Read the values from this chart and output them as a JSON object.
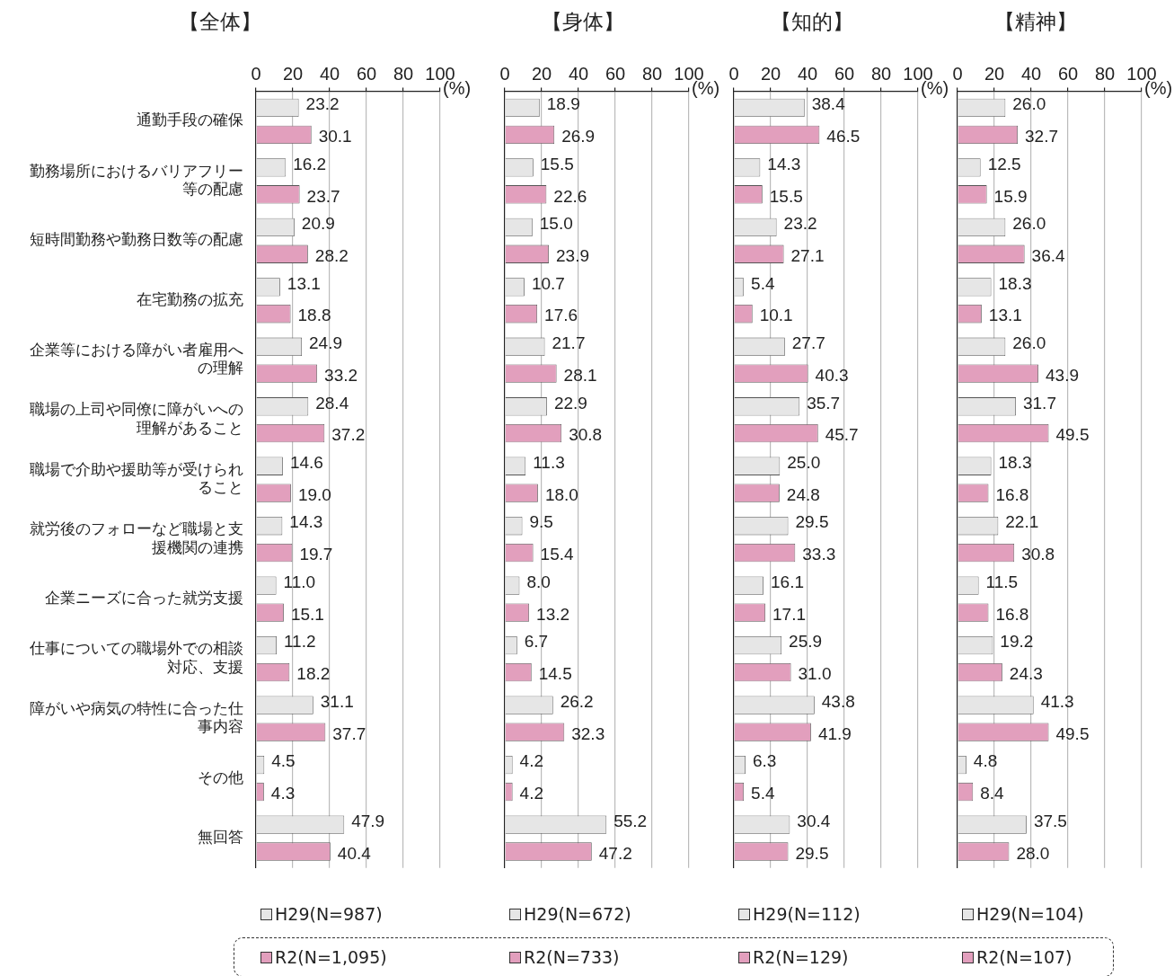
{
  "chart_data": [
    {
      "type": "bar",
      "orientation": "horizontal",
      "title": "【全体】",
      "xlabel": "(%)",
      "categories": [
        "通勤手段の確保",
        "勤務場所におけるバリアフリー等の配慮",
        "短時間勤務や勤務日数等の配慮",
        "在宅勤務の拡充",
        "企業等における障がい者雇用への理解",
        "職場の上司や同僚に障がいへの理解があること",
        "職場で介助や援助等が受けられること",
        "就労後のフォローなど職場と支援機関の連携",
        "企業ニーズに合った就労支援",
        "仕事についての職場外での相談対応、支援",
        "障がいや病気の特性に合った仕事内容",
        "その他",
        "無回答"
      ],
      "xlim": [
        0,
        100
      ],
      "xticks": [
        0,
        20,
        40,
        60,
        80,
        100
      ],
      "grid": "x",
      "legend": "bottom",
      "series": [
        {
          "name": "H29(N=987)",
          "color": "#e6e6e6",
          "values": [
            23.2,
            16.2,
            20.9,
            13.1,
            24.9,
            28.4,
            14.6,
            14.3,
            11.0,
            11.2,
            31.1,
            4.5,
            47.9
          ],
          "value_labels": [
            "23.2",
            "16.2",
            "20.9",
            "13.1",
            "24.9",
            "28.4",
            "14.6",
            "14.3",
            "11.0",
            "11.2",
            "31.1",
            "4.5",
            "47.9"
          ]
        },
        {
          "name": "R2(N=1,095)",
          "color": "#e29fbd",
          "values": [
            30.1,
            23.7,
            28.2,
            18.8,
            33.2,
            37.2,
            19.0,
            19.7,
            15.1,
            18.2,
            37.7,
            4.3,
            40.4
          ],
          "value_labels": [
            "30.1",
            "23.7",
            "28.2",
            "18.8",
            "33.2",
            "37.2",
            "19.0",
            "19.7",
            "15.1",
            "18.2",
            "37.7",
            "4.3",
            "40.4"
          ]
        }
      ]
    },
    {
      "type": "bar",
      "orientation": "horizontal",
      "title": "【身体】",
      "xlabel": "(%)",
      "categories": [
        "通勤手段の確保",
        "勤務場所におけるバリアフリー等の配慮",
        "短時間勤務や勤務日数等の配慮",
        "在宅勤務の拡充",
        "企業等における障がい者雇用への理解",
        "職場の上司や同僚に障がいへの理解があること",
        "職場で介助や援助等が受けられること",
        "就労後のフォローなど職場と支援機関の連携",
        "企業ニーズに合った就労支援",
        "仕事についての職場外での相談対応、支援",
        "障がいや病気の特性に合った仕事内容",
        "その他",
        "無回答"
      ],
      "xlim": [
        0,
        100
      ],
      "xticks": [
        0,
        20,
        40,
        60,
        80,
        100
      ],
      "grid": "x",
      "legend": "bottom",
      "tick_labels": "x",
      "series": [
        {
          "name": "H29(N=672)",
          "color": "#e6e6e6",
          "values": [
            18.9,
            15.5,
            15.0,
            10.7,
            21.7,
            22.9,
            11.3,
            9.5,
            8.0,
            6.7,
            26.2,
            4.2,
            55.2
          ],
          "value_labels": [
            "18.9",
            "15.5",
            "15.0",
            "10.7",
            "21.7",
            "22.9",
            "11.3",
            "9.5",
            "8.0",
            "6.7",
            "26.2",
            "4.2",
            "55.2"
          ]
        },
        {
          "name": "R2(N=733)",
          "color": "#e29fbd",
          "values": [
            26.9,
            22.6,
            23.9,
            17.6,
            28.1,
            30.8,
            18.0,
            15.4,
            13.2,
            14.5,
            32.3,
            4.2,
            47.2
          ],
          "value_labels": [
            "26.9",
            "22.6",
            "23.9",
            "17.6",
            "28.1",
            "30.8",
            "18.0",
            "15.4",
            "13.2",
            "14.5",
            "32.3",
            "4.2",
            "47.2"
          ]
        }
      ]
    },
    {
      "type": "bar",
      "orientation": "horizontal",
      "title": "【知的】",
      "xlabel": "(%)",
      "categories": [
        "通勤手段の確保",
        "勤務場所におけるバリアフリー等の配慮",
        "短時間勤務や勤務日数等の配慮",
        "在宅勤務の拡充",
        "企業等における障がい者雇用への理解",
        "職場の上司や同僚に障がいへの理解があること",
        "職場で介助や援助等が受けられること",
        "就労後のフォローなど職場と支援機関の連携",
        "企業ニーズに合った就労支援",
        "仕事についての職場外での相談対応、支援",
        "障がいや病気の特性に合った仕事内容",
        "その他",
        "無回答"
      ],
      "xlim": [
        0,
        100
      ],
      "xticks": [
        0,
        20,
        40,
        60,
        80,
        100
      ],
      "grid": "x",
      "legend": "bottom",
      "tick_labels": "x",
      "series": [
        {
          "name": "H29(N=112)",
          "color": "#e6e6e6",
          "values": [
            38.4,
            14.3,
            23.2,
            5.4,
            27.7,
            35.7,
            25.0,
            29.5,
            16.1,
            25.9,
            43.8,
            6.3,
            30.4
          ],
          "value_labels": [
            "38.4",
            "14.3",
            "23.2",
            "5.4",
            "27.7",
            "35.7",
            "25.0",
            "29.5",
            "16.1",
            "25.9",
            "43.8",
            "6.3",
            "30.4"
          ]
        },
        {
          "name": "R2(N=129)",
          "color": "#e29fbd",
          "values": [
            46.5,
            15.5,
            27.1,
            10.1,
            40.3,
            45.7,
            24.8,
            33.3,
            17.1,
            31.0,
            41.9,
            5.4,
            29.5
          ],
          "value_labels": [
            "46.5",
            "15.5",
            "27.1",
            "10.1",
            "40.3",
            "45.7",
            "24.8",
            "33.3",
            "17.1",
            "31.0",
            "41.9",
            "5.4",
            "29.5"
          ]
        }
      ]
    },
    {
      "type": "bar",
      "orientation": "horizontal",
      "title": "【精神】",
      "xlabel": "(%)",
      "categories": [
        "通勤手段の確保",
        "勤務場所におけるバリアフリー等の配慮",
        "短時間勤務や勤務日数等の配慮",
        "在宅勤務の拡充",
        "企業等における障がい者雇用への理解",
        "職場の上司や同僚に障がいへの理解があること",
        "職場で介助や援助等が受けられること",
        "就労後のフォローなど職場と支援機関の連携",
        "企業ニーズに合った就労支援",
        "仕事についての職場外での相談対応、支援",
        "障がいや病気の特性に合った仕事内容",
        "その他",
        "無回答"
      ],
      "xlim": [
        0,
        100
      ],
      "xticks": [
        0,
        20,
        40,
        60,
        80,
        100
      ],
      "grid": "x",
      "legend": "bottom",
      "tick_labels": "x",
      "series": [
        {
          "name": "H29(N=104)",
          "color": "#e6e6e6",
          "values": [
            26.0,
            12.5,
            26.0,
            18.3,
            26.0,
            31.7,
            18.3,
            22.1,
            11.5,
            19.2,
            41.3,
            4.8,
            37.5
          ],
          "value_labels": [
            "26.0",
            "12.5",
            "26.0",
            "18.3",
            "26.0",
            "31.7",
            "18.3",
            "22.1",
            "11.5",
            "19.2",
            "41.3",
            "4.8",
            "37.5"
          ]
        },
        {
          "name": "R2(N=107)",
          "color": "#e29fbd",
          "values": [
            32.7,
            15.9,
            36.4,
            13.1,
            43.9,
            49.5,
            16.8,
            30.8,
            16.8,
            24.3,
            49.5,
            8.4,
            28.0
          ],
          "value_labels": [
            "32.7",
            "15.9",
            "36.4",
            "13.1",
            "43.9",
            "49.5",
            "16.8",
            "30.8",
            "16.8",
            "24.3",
            "49.5",
            "8.4",
            "28.0"
          ]
        }
      ]
    }
  ]
}
